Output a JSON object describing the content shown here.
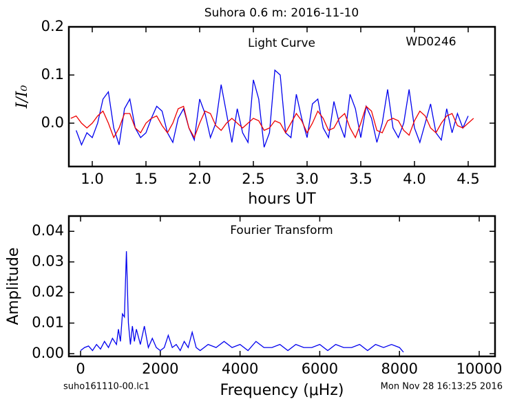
{
  "chart_data": [
    {
      "type": "line",
      "title": "Suhora 0.6 m:  2016-11-10",
      "xlabel": "hours UT",
      "ylabel": "I/I₀",
      "annotations": [
        "Light Curve",
        "WD0246"
      ],
      "xlim": [
        0.782,
        4.75
      ],
      "ylim": [
        -0.09,
        0.2
      ],
      "xticks": [
        {
          "value": 1.0,
          "label": "1.0"
        },
        1.5,
        {
          "value": 2.0,
          "label": "2.0"
        },
        2.5,
        {
          "value": 3.0,
          "label": "3.0"
        },
        3.5,
        {
          "value": 4.0,
          "label": "4.0"
        },
        4.5
      ],
      "yticks": [
        {
          "value": 0,
          "label": "0.0"
        },
        0.1,
        0.2
      ],
      "series": [
        {
          "color": "#0000ee",
          "x": [
            0.85,
            0.9,
            0.95,
            1.0,
            1.05,
            1.1,
            1.15,
            1.2,
            1.25,
            1.3,
            1.35,
            1.4,
            1.45,
            1.5,
            1.55,
            1.6,
            1.65,
            1.7,
            1.75,
            1.8,
            1.85,
            1.9,
            1.95,
            2.0,
            2.05,
            2.1,
            2.15,
            2.2,
            2.25,
            2.3,
            2.35,
            2.4,
            2.45,
            2.5,
            2.55,
            2.6,
            2.65,
            2.7,
            2.75,
            2.8,
            2.85,
            2.9,
            2.95,
            3.0,
            3.05,
            3.1,
            3.15,
            3.2,
            3.25,
            3.3,
            3.35,
            3.4,
            3.45,
            3.5,
            3.55,
            3.6,
            3.65,
            3.7,
            3.75,
            3.8,
            3.85,
            3.9,
            3.95,
            4.0,
            4.05,
            4.1,
            4.15,
            4.2,
            4.25,
            4.3,
            4.35,
            4.4,
            4.45,
            4.5
          ],
          "values": [
            -0.015,
            -0.045,
            -0.02,
            -0.03,
            0.0,
            0.05,
            0.065,
            -0.01,
            -0.045,
            0.03,
            0.05,
            -0.01,
            -0.03,
            -0.02,
            0.01,
            0.035,
            0.025,
            -0.02,
            -0.04,
            0.01,
            0.03,
            -0.01,
            -0.035,
            0.05,
            0.02,
            -0.03,
            0.0,
            0.08,
            0.02,
            -0.04,
            0.03,
            -0.02,
            -0.04,
            0.09,
            0.05,
            -0.05,
            -0.02,
            0.11,
            0.1,
            -0.02,
            -0.03,
            0.06,
            0.01,
            -0.03,
            0.04,
            0.05,
            -0.01,
            -0.03,
            0.045,
            0.0,
            -0.03,
            0.06,
            0.03,
            -0.03,
            0.035,
            0.01,
            -0.04,
            0.0,
            0.07,
            -0.01,
            -0.03,
            0.0,
            0.07,
            -0.01,
            -0.04,
            0.0,
            0.04,
            -0.02,
            -0.035,
            0.03,
            -0.02,
            0.02,
            -0.01,
            0.015
          ]
        },
        {
          "color": "#ee0000",
          "x": [
            0.8,
            0.85,
            0.9,
            0.95,
            1.0,
            1.05,
            1.1,
            1.15,
            1.2,
            1.25,
            1.3,
            1.35,
            1.4,
            1.45,
            1.5,
            1.55,
            1.6,
            1.65,
            1.7,
            1.75,
            1.8,
            1.85,
            1.9,
            1.95,
            2.0,
            2.05,
            2.1,
            2.15,
            2.2,
            2.25,
            2.3,
            2.35,
            2.4,
            2.45,
            2.5,
            2.55,
            2.6,
            2.65,
            2.7,
            2.75,
            2.8,
            2.85,
            2.9,
            2.95,
            3.0,
            3.05,
            3.1,
            3.15,
            3.2,
            3.25,
            3.3,
            3.35,
            3.4,
            3.45,
            3.5,
            3.55,
            3.6,
            3.65,
            3.7,
            3.75,
            3.8,
            3.85,
            3.9,
            3.95,
            4.0,
            4.05,
            4.1,
            4.15,
            4.2,
            4.25,
            4.3,
            4.35,
            4.4,
            4.45,
            4.5,
            4.55
          ],
          "values": [
            0.01,
            0.015,
            0.0,
            -0.01,
            0.0,
            0.015,
            0.025,
            0.0,
            -0.03,
            -0.01,
            0.02,
            0.02,
            -0.01,
            -0.02,
            0.0,
            0.01,
            0.015,
            -0.005,
            -0.02,
            0.0,
            0.03,
            0.035,
            -0.01,
            -0.03,
            0.0,
            0.025,
            0.02,
            -0.005,
            -0.015,
            0.0,
            0.01,
            0.0,
            -0.01,
            0.0,
            0.01,
            0.005,
            -0.015,
            -0.01,
            0.005,
            0.0,
            -0.02,
            0.0,
            0.02,
            0.005,
            -0.02,
            0.0,
            0.025,
            0.01,
            -0.015,
            -0.01,
            0.01,
            0.02,
            -0.01,
            -0.03,
            0.0,
            0.035,
            0.025,
            -0.015,
            -0.02,
            0.005,
            0.01,
            0.005,
            -0.015,
            -0.025,
            0.005,
            0.025,
            0.015,
            -0.01,
            -0.02,
            0.0,
            0.015,
            0.02,
            -0.005,
            -0.01,
            0.0,
            0.01
          ]
        }
      ]
    },
    {
      "type": "line",
      "xlabel": "Frequency (μHz)",
      "ylabel": "Amplitude",
      "annotations": [
        "Fourier Transform"
      ],
      "xlim": [
        -294,
        10397
      ],
      "ylim": [
        -0.0009,
        0.045
      ],
      "xticks": [
        0,
        2000,
        4000,
        6000,
        8000,
        10000
      ],
      "yticks": [
        {
          "value": 0,
          "label": "0.00"
        },
        {
          "value": 0.01,
          "label": "0.01"
        },
        {
          "value": 0.02,
          "label": "0.02"
        },
        {
          "value": 0.03,
          "label": "0.03"
        },
        {
          "value": 0.04,
          "label": "0.04"
        }
      ],
      "series": [
        {
          "color": "#0000ee",
          "x": [
            0,
            100,
            200,
            300,
            400,
            500,
            600,
            700,
            800,
            900,
            950,
            1000,
            1050,
            1100,
            1150,
            1200,
            1250,
            1300,
            1350,
            1400,
            1500,
            1600,
            1700,
            1800,
            1900,
            2000,
            2100,
            2200,
            2300,
            2400,
            2500,
            2600,
            2700,
            2800,
            2900,
            3000,
            3200,
            3400,
            3600,
            3800,
            4000,
            4200,
            4400,
            4600,
            4800,
            5000,
            5200,
            5400,
            5600,
            5800,
            6000,
            6200,
            6400,
            6600,
            6800,
            7000,
            7200,
            7400,
            7600,
            7800,
            8000,
            8100
          ],
          "values": [
            0.001,
            0.002,
            0.0025,
            0.001,
            0.003,
            0.0015,
            0.004,
            0.002,
            0.005,
            0.003,
            0.008,
            0.004,
            0.013,
            0.012,
            0.0335,
            0.01,
            0.003,
            0.009,
            0.004,
            0.008,
            0.003,
            0.009,
            0.002,
            0.005,
            0.002,
            0.001,
            0.002,
            0.006,
            0.002,
            0.003,
            0.001,
            0.004,
            0.002,
            0.007,
            0.002,
            0.001,
            0.003,
            0.002,
            0.004,
            0.002,
            0.003,
            0.001,
            0.004,
            0.002,
            0.002,
            0.003,
            0.001,
            0.003,
            0.002,
            0.002,
            0.003,
            0.001,
            0.003,
            0.002,
            0.002,
            0.003,
            0.001,
            0.003,
            0.002,
            0.003,
            0.002,
            0.0005
          ]
        }
      ]
    }
  ],
  "footer": {
    "file": "suho161110-00.lc1",
    "timestamp": "Mon Nov 28 16:13:25 2016"
  }
}
